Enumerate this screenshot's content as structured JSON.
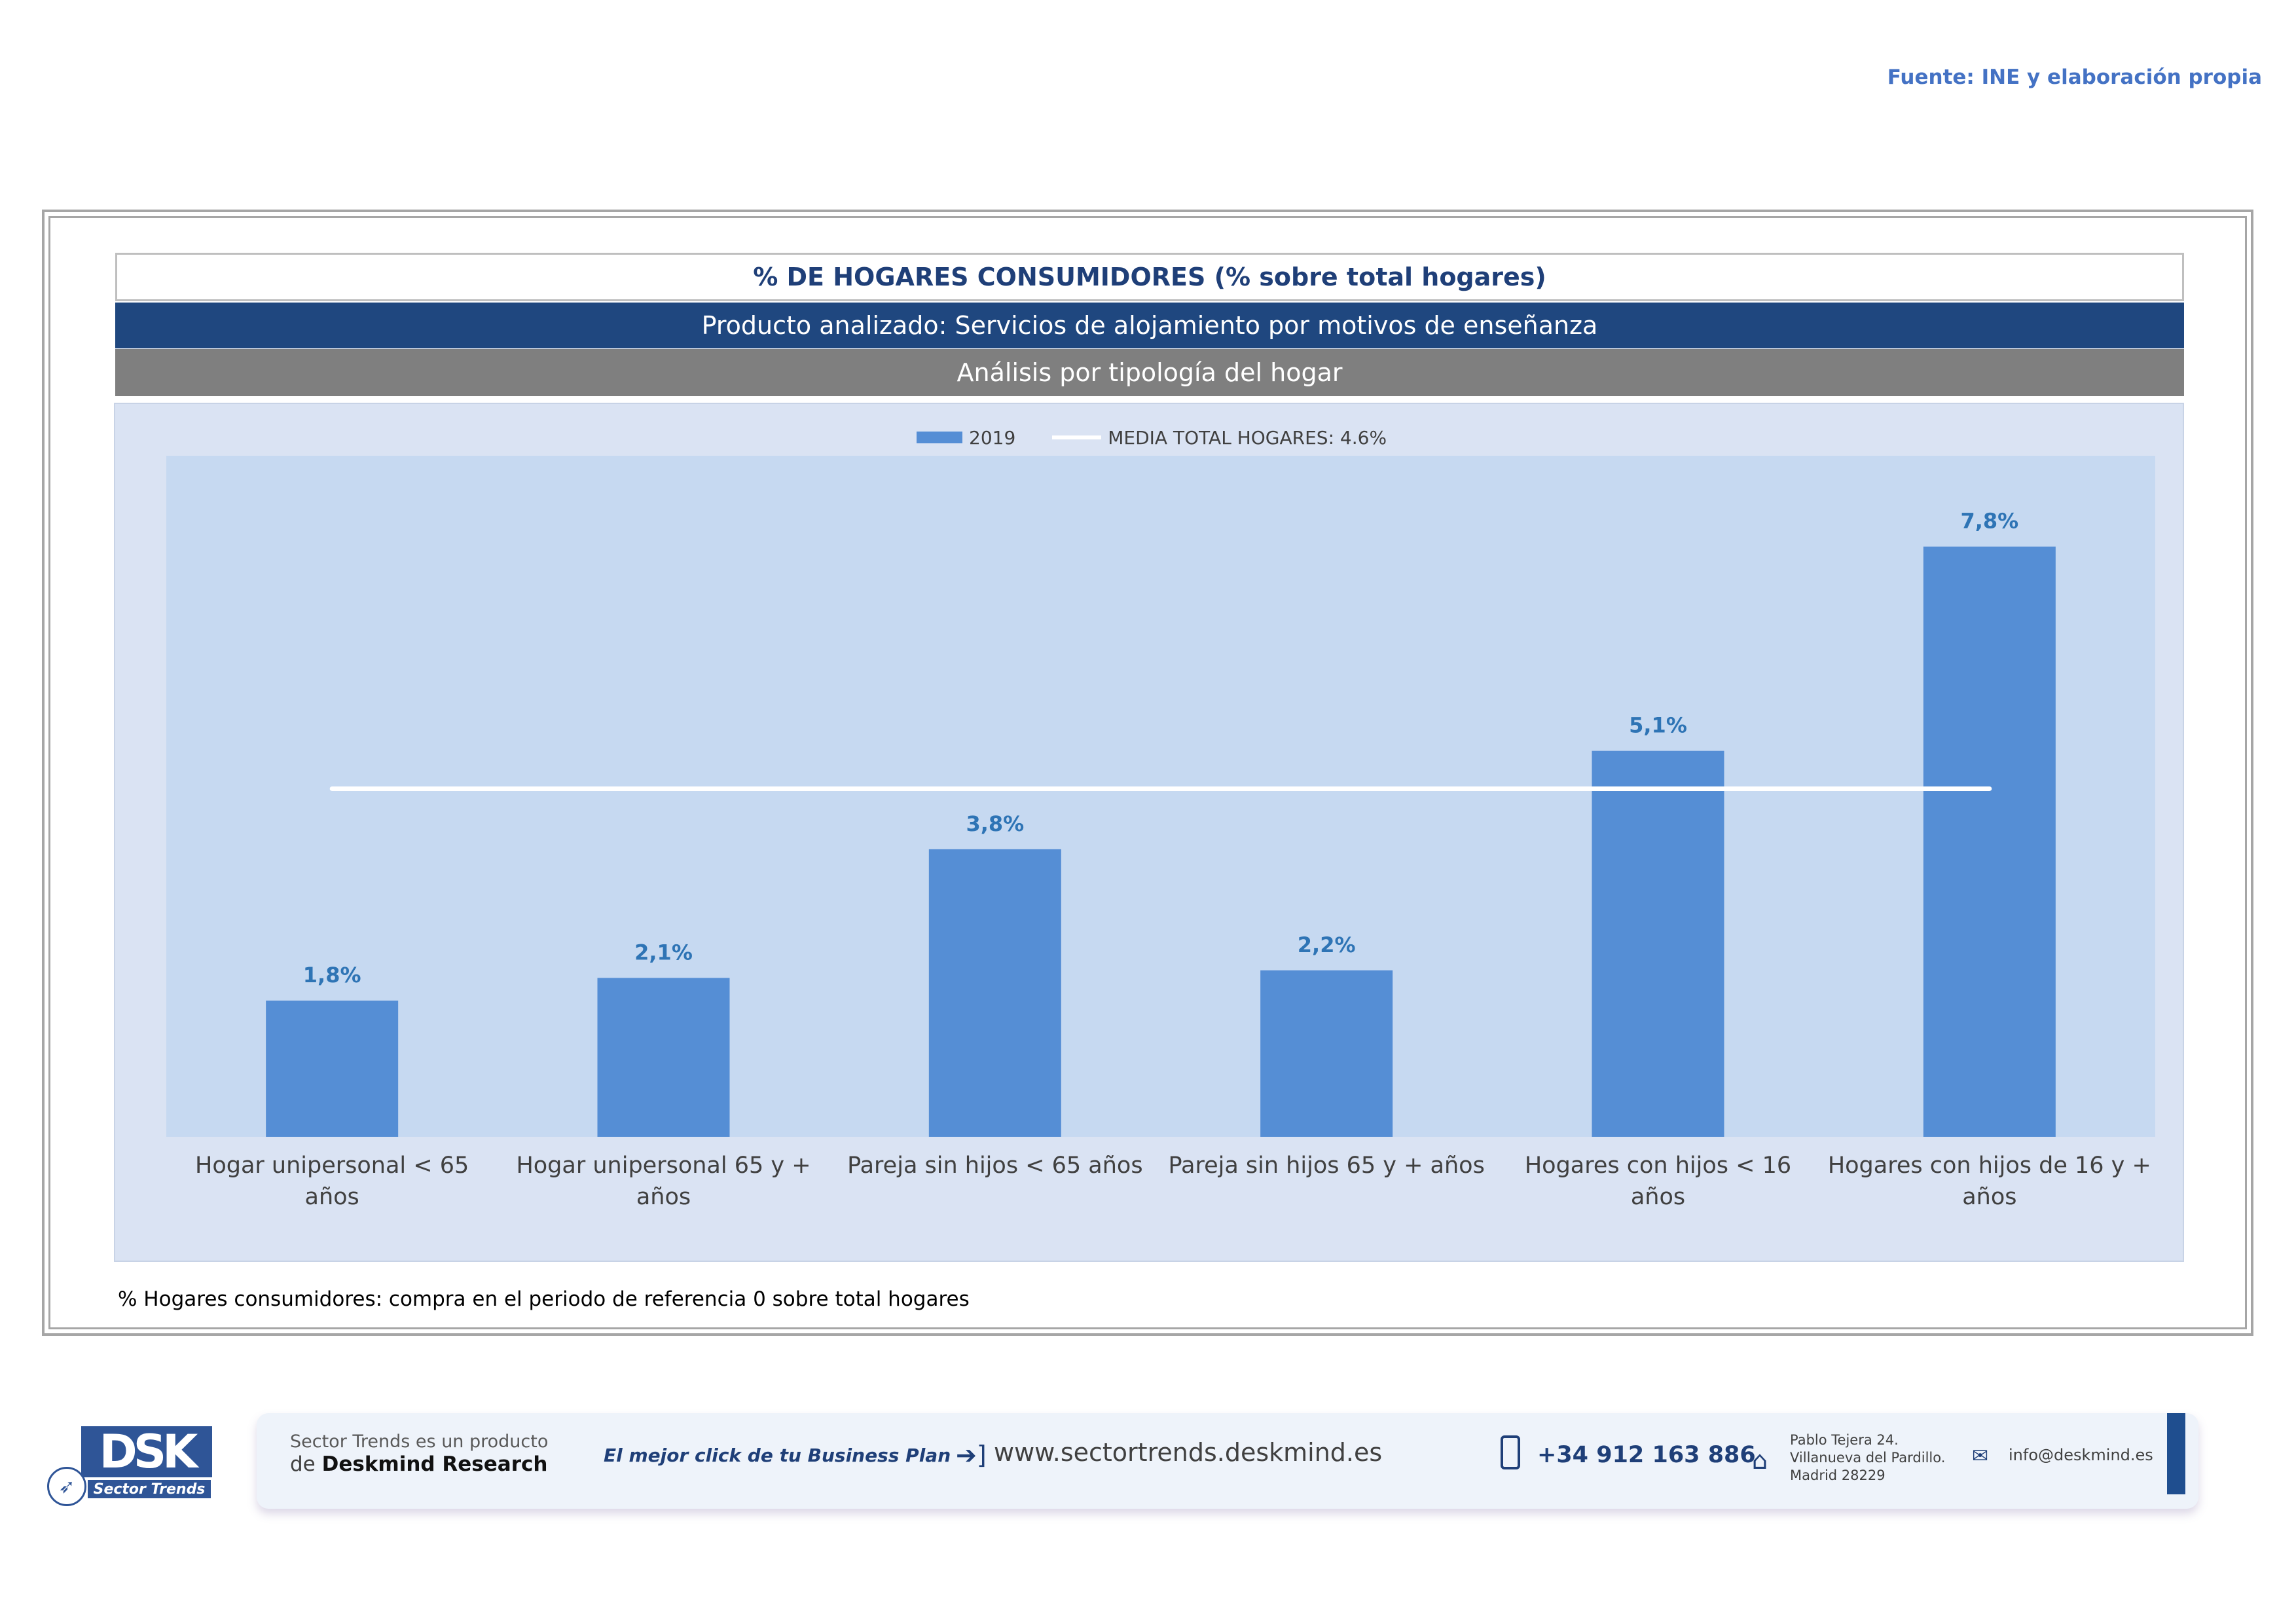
{
  "source": "Fuente: INE y elaboración propia",
  "header": {
    "title": "% DE HOGARES CONSUMIDORES (% sobre total hogares)",
    "product": "Producto analizado: Servicios de alojamiento por motivos de enseñanza",
    "analysis": "Análisis por tipología del hogar"
  },
  "legend": {
    "bar_label": "2019",
    "line_label": "MEDIA TOTAL  HOGARES:  4.6%"
  },
  "chart_data": {
    "type": "bar",
    "categories": [
      "Hogar unipersonal < 65 años",
      "Hogar unipersonal  65 y + años",
      "Pareja sin hijos < 65 años",
      "Pareja sin hijos 65 y + años",
      "Hogares con hijos < 16 años",
      "Hogares con hijos de 16 y + años"
    ],
    "series": [
      {
        "name": "2019",
        "values": [
          1.8,
          2.1,
          3.8,
          2.2,
          5.1,
          7.8
        ]
      }
    ],
    "data_labels": [
      "1,8%",
      "2,1%",
      "3,8%",
      "2,2%",
      "5,1%",
      "7,8%"
    ],
    "reference_line": {
      "name": "MEDIA TOTAL  HOGARES:  4.6%",
      "value": 4.6
    },
    "ylim": [
      0,
      9
    ],
    "grid": false,
    "legend_position": "top",
    "colors": {
      "bar": "#558ed5",
      "line": "#ffffff",
      "label": "#2e74b5",
      "plot_bg": "#c6d9f1"
    }
  },
  "footnote": "% Hogares consumidores: compra en el periodo de referencia 0 sobre total hogares",
  "footer": {
    "logo_text": "DSK",
    "logo_sub": "Sector Trends",
    "tagline_1": "Sector Trends es un producto",
    "tagline_2_prefix": "de",
    "tagline_2_brand": "Deskmind Research",
    "slogan": "El mejor click de tu Business Plan",
    "web": "www.sectortrends.deskmind.es",
    "phone": "+34 912 163 886",
    "address_1": "Pablo Tejera 24.",
    "address_2": "Villanueva del Pardillo.",
    "address_3": "Madrid 28229",
    "email": "info@deskmind.es",
    "icons": [
      "arrow-right-icon",
      "phone-icon",
      "home-icon",
      "mail-icon",
      "rocket-icon"
    ]
  }
}
